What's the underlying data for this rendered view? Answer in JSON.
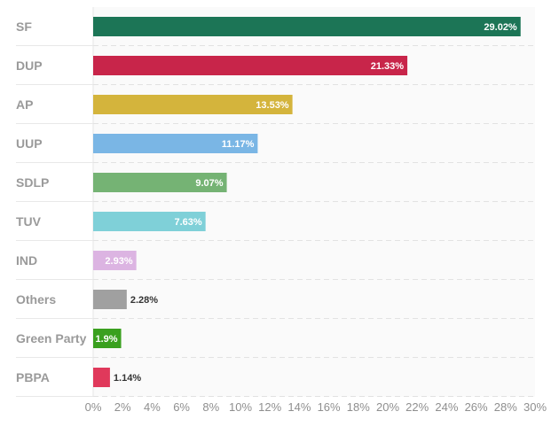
{
  "chart_data": {
    "type": "bar",
    "orientation": "horizontal",
    "title": "",
    "xlabel": "",
    "ylabel": "",
    "xlim": [
      0,
      30
    ],
    "tick_step": 2,
    "tick_suffix": "%",
    "grid": true,
    "categories": [
      "SF",
      "DUP",
      "AP",
      "UUP",
      "SDLP",
      "TUV",
      "IND",
      "Others",
      "Green Party",
      "PBPA"
    ],
    "values": [
      29.02,
      21.33,
      13.53,
      11.17,
      9.07,
      7.63,
      2.93,
      2.28,
      1.9,
      1.14
    ],
    "value_labels": [
      "29.02%",
      "21.33%",
      "13.53%",
      "11.17%",
      "9.07%",
      "7.63%",
      "2.93%",
      "2.28%",
      "1.9%",
      "1.14%"
    ],
    "colors": [
      "#1c7556",
      "#c8254a",
      "#d4b43c",
      "#7ab6e5",
      "#75b374",
      "#7fd0d8",
      "#dcb4e2",
      "#a0a0a0",
      "#3aa01f",
      "#e0395b"
    ],
    "label_inside": [
      true,
      true,
      true,
      true,
      true,
      true,
      true,
      false,
      true,
      false
    ],
    "tick_labels": [
      "0%",
      "2%",
      "4%",
      "6%",
      "8%",
      "10%",
      "12%",
      "14%",
      "16%",
      "18%",
      "20%",
      "22%",
      "24%",
      "26%",
      "28%",
      "30%"
    ]
  }
}
